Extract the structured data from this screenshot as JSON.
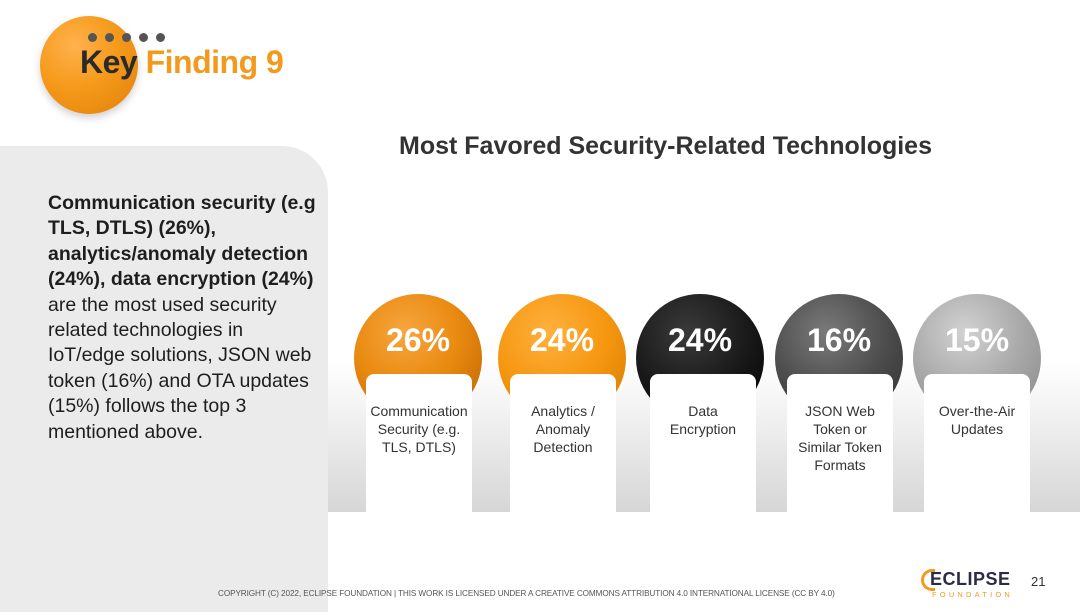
{
  "header": {
    "title_key": "Key",
    "title_finding": "Finding 9"
  },
  "summary": {
    "bold_text": "Communication security (e.g TLS, DTLS) (26%), analytics/anomaly detection (24%), data encryption (24%)",
    "normal_text": " are the most used security related technologies in IoT/edge solutions, JSON web token (16%) and OTA updates (15%) follows the top 3 mentioned above."
  },
  "chart_data": {
    "type": "bar",
    "title": "Most Favored Security-Related Technologies",
    "categories": [
      "Communication Security (e.g. TLS, DTLS)",
      "Analytics / Anomaly Detection",
      "Data Encryption",
      "JSON Web Token or Similar Token Formats",
      "Over-the-Air Updates"
    ],
    "values": [
      26,
      24,
      24,
      16,
      15
    ],
    "value_labels": [
      "26%",
      "24%",
      "24%",
      "16%",
      "15%"
    ],
    "colors": [
      "#e98a10",
      "#f5960f",
      "#1a1a1a",
      "#4d4d4d",
      "#a8a8a8"
    ]
  },
  "cards": [
    {
      "label": "Communication\nSecurity (e.g.\nTLS, DTLS)"
    },
    {
      "label": "Analytics /\nAnomaly\nDetection"
    },
    {
      "label": "Data\nEncryption"
    },
    {
      "label": "JSON Web\nToken or\nSimilar Token\nFormats"
    },
    {
      "label": "Over-the-Air\nUpdates"
    }
  ],
  "footer": {
    "copyright": "COPYRIGHT (C) 2022, ECLIPSE FOUNDATION | THIS WORK IS LICENSED UNDER A CREATIVE COMMONS ATTRIBUTION 4.0 INTERNATIONAL LICENSE (CC BY 4.0)",
    "logo_main": "ECLIPSE",
    "logo_sub": "FOUNDATION",
    "page_number": "21"
  }
}
